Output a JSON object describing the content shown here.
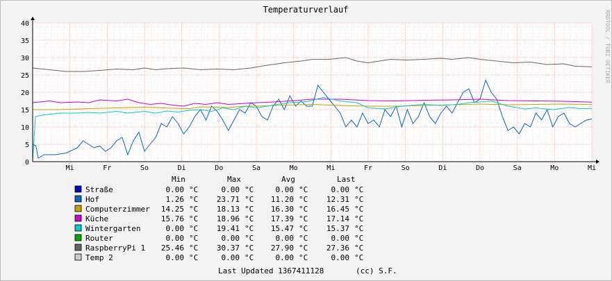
{
  "chart_data": {
    "type": "line",
    "title": "Temperaturverlauf",
    "watermark": "RRDTOOL / TOBI OETIKER",
    "ylim": [
      0,
      40
    ],
    "y_ticks": [
      "0",
      "5",
      "10",
      "15",
      "20",
      "25",
      "30",
      "35",
      "40"
    ],
    "x_ticks": [
      "Mi",
      "Fr",
      "So",
      "Di",
      "Do",
      "Sa",
      "Mo",
      "Mi",
      "Fr",
      "So",
      "Di",
      "Do",
      "Sa",
      "Mo",
      "Mi"
    ],
    "grid": true,
    "legend_headers": [
      "Min",
      "Max",
      "Avg",
      "Last"
    ],
    "unit": "°C",
    "series": [
      {
        "name": "Straße",
        "color": "#0000cc",
        "min": "0.00",
        "max": "0.00",
        "avg": "0.00",
        "last": "0.00",
        "values": []
      },
      {
        "name": "Hof",
        "color": "#0066cc",
        "min": "1.26",
        "max": "23.71",
        "avg": "11.20",
        "last": "12.31",
        "values": [
          [
            0,
            5
          ],
          [
            0.6,
            4.5
          ],
          [
            1,
            1
          ],
          [
            2,
            2
          ],
          [
            4,
            2
          ],
          [
            6,
            2.5
          ],
          [
            8,
            4
          ],
          [
            9,
            6
          ],
          [
            10,
            5
          ],
          [
            11,
            4
          ],
          [
            12,
            4.5
          ],
          [
            13,
            3
          ],
          [
            14,
            4
          ],
          [
            15,
            6
          ],
          [
            16,
            7
          ],
          [
            17,
            2
          ],
          [
            18,
            6
          ],
          [
            19,
            8.5
          ],
          [
            20,
            3
          ],
          [
            21,
            5
          ],
          [
            22,
            7
          ],
          [
            23,
            11
          ],
          [
            24,
            10
          ],
          [
            25,
            13
          ],
          [
            26,
            11
          ],
          [
            27,
            8
          ],
          [
            28,
            10
          ],
          [
            29,
            13
          ],
          [
            30,
            15
          ],
          [
            31,
            12
          ],
          [
            32,
            16
          ],
          [
            33,
            14.5
          ],
          [
            34,
            12
          ],
          [
            35,
            9
          ],
          [
            36,
            12
          ],
          [
            37,
            15
          ],
          [
            38,
            14
          ],
          [
            39,
            17
          ],
          [
            40,
            16
          ],
          [
            41,
            13
          ],
          [
            42,
            12
          ],
          [
            43,
            16
          ],
          [
            44,
            18
          ],
          [
            45,
            15
          ],
          [
            46,
            19
          ],
          [
            47,
            16
          ],
          [
            48,
            17.5
          ],
          [
            49,
            16
          ],
          [
            50,
            16
          ],
          [
            51,
            22
          ],
          [
            52,
            20
          ],
          [
            53,
            18
          ],
          [
            54,
            16
          ],
          [
            55,
            14
          ],
          [
            56,
            10
          ],
          [
            57,
            12
          ],
          [
            58,
            10
          ],
          [
            59,
            14
          ],
          [
            60,
            11
          ],
          [
            61,
            12
          ],
          [
            62,
            10
          ],
          [
            63,
            15
          ],
          [
            64,
            13
          ],
          [
            65,
            16
          ],
          [
            66,
            10
          ],
          [
            67,
            15
          ],
          [
            68,
            11
          ],
          [
            69,
            13
          ],
          [
            70,
            17
          ],
          [
            71,
            13
          ],
          [
            72,
            11
          ],
          [
            73,
            14
          ],
          [
            74,
            16
          ],
          [
            75,
            14
          ],
          [
            76,
            17
          ],
          [
            77,
            20
          ],
          [
            78,
            21
          ],
          [
            79,
            17
          ],
          [
            80,
            18
          ],
          [
            81,
            23.5
          ],
          [
            82,
            20
          ],
          [
            83,
            18
          ],
          [
            84,
            13
          ],
          [
            85,
            9
          ],
          [
            86,
            10
          ],
          [
            87,
            8
          ],
          [
            88,
            11
          ],
          [
            89,
            10
          ],
          [
            90,
            14
          ],
          [
            91,
            12
          ],
          [
            92,
            15
          ],
          [
            93,
            10
          ],
          [
            94,
            13
          ],
          [
            95,
            14
          ],
          [
            96,
            11
          ],
          [
            97,
            10
          ],
          [
            98,
            11
          ],
          [
            99,
            12
          ],
          [
            100,
            12.3
          ]
        ]
      },
      {
        "name": "Computerzimmer",
        "color": "#c2a300",
        "min": "14.25",
        "max": "18.13",
        "avg": "16.30",
        "last": "16.45",
        "values": [
          [
            0,
            15
          ],
          [
            5,
            15
          ],
          [
            10,
            15.3
          ],
          [
            15,
            15.5
          ],
          [
            20,
            15.7
          ],
          [
            25,
            15.4
          ],
          [
            28,
            15.3
          ],
          [
            30,
            15.8
          ],
          [
            35,
            15.6
          ],
          [
            38,
            16
          ],
          [
            40,
            16
          ],
          [
            45,
            16.3
          ],
          [
            50,
            16.5
          ],
          [
            55,
            16.2
          ],
          [
            60,
            16
          ],
          [
            65,
            16
          ],
          [
            70,
            16.2
          ],
          [
            75,
            16.4
          ],
          [
            80,
            16.6
          ],
          [
            85,
            16.4
          ],
          [
            90,
            16.5
          ],
          [
            95,
            16.6
          ],
          [
            100,
            16.45
          ]
        ]
      },
      {
        "name": "Küche",
        "color": "#cc00cc",
        "min": "15.76",
        "max": "18.96",
        "avg": "17.39",
        "last": "17.14",
        "values": [
          [
            0,
            17
          ],
          [
            3,
            17.5
          ],
          [
            5,
            17
          ],
          [
            8,
            17.2
          ],
          [
            10,
            17
          ],
          [
            12,
            17.8
          ],
          [
            15,
            17.5
          ],
          [
            17,
            18
          ],
          [
            19,
            17
          ],
          [
            21,
            16.5
          ],
          [
            23,
            16.8
          ],
          [
            25,
            16.3
          ],
          [
            27,
            16
          ],
          [
            29,
            16.8
          ],
          [
            31,
            16.5
          ],
          [
            33,
            17
          ],
          [
            35,
            16.5
          ],
          [
            38,
            16.8
          ],
          [
            40,
            17
          ],
          [
            43,
            17.2
          ],
          [
            46,
            17.5
          ],
          [
            50,
            18
          ],
          [
            55,
            18
          ],
          [
            60,
            17.6
          ],
          [
            65,
            17.5
          ],
          [
            70,
            17.7
          ],
          [
            75,
            17.8
          ],
          [
            80,
            18
          ],
          [
            85,
            17.6
          ],
          [
            90,
            17.5
          ],
          [
            95,
            17.4
          ],
          [
            100,
            17.14
          ]
        ]
      },
      {
        "name": "Wintergarten",
        "color": "#00cccc",
        "min": "0.00",
        "max": "19.41",
        "avg": "15.47",
        "last": "15.37",
        "values": [
          [
            0,
            0
          ],
          [
            0.5,
            13
          ],
          [
            2,
            13.5
          ],
          [
            5,
            14
          ],
          [
            8,
            14
          ],
          [
            10,
            14.2
          ],
          [
            12,
            14
          ],
          [
            15,
            14.5
          ],
          [
            17,
            14
          ],
          [
            20,
            14.5
          ],
          [
            22,
            14
          ],
          [
            24,
            14.6
          ],
          [
            26,
            14.3
          ],
          [
            28,
            14.8
          ],
          [
            30,
            15
          ],
          [
            32,
            14.5
          ],
          [
            34,
            15.5
          ],
          [
            36,
            15
          ],
          [
            38,
            16
          ],
          [
            40,
            15.5
          ],
          [
            43,
            16.3
          ],
          [
            46,
            17
          ],
          [
            49,
            17.3
          ],
          [
            52,
            18.5
          ],
          [
            55,
            17.5
          ],
          [
            58,
            17
          ],
          [
            60,
            15.5
          ],
          [
            63,
            15.2
          ],
          [
            66,
            16
          ],
          [
            70,
            16.5
          ],
          [
            73,
            16.2
          ],
          [
            76,
            16.5
          ],
          [
            78,
            17
          ],
          [
            80,
            17.2
          ],
          [
            82,
            17.5
          ],
          [
            85,
            16
          ],
          [
            88,
            15.2
          ],
          [
            90,
            15.5
          ],
          [
            93,
            15
          ],
          [
            96,
            15.6
          ],
          [
            98,
            15.3
          ],
          [
            100,
            15.37
          ]
        ]
      },
      {
        "name": "Router",
        "color": "#00aa00",
        "min": "0.00",
        "max": "0.00",
        "avg": "0.00",
        "last": "0.00",
        "values": []
      },
      {
        "name": "RaspberryPi 1",
        "color": "#666666",
        "min": "25.46",
        "max": "30.37",
        "avg": "27.90",
        "last": "27.36",
        "values": [
          [
            0,
            27
          ],
          [
            3,
            26.5
          ],
          [
            6,
            26
          ],
          [
            9,
            26
          ],
          [
            12,
            26.3
          ],
          [
            15,
            26.7
          ],
          [
            18,
            26.5
          ],
          [
            20,
            27
          ],
          [
            22,
            26.5
          ],
          [
            24,
            26.8
          ],
          [
            27,
            27
          ],
          [
            30,
            26.5
          ],
          [
            33,
            26.7
          ],
          [
            36,
            26.5
          ],
          [
            39,
            27
          ],
          [
            42,
            27.8
          ],
          [
            45,
            28.5
          ],
          [
            48,
            29
          ],
          [
            50,
            29.5
          ],
          [
            53,
            29.5
          ],
          [
            56,
            30
          ],
          [
            58,
            29
          ],
          [
            60,
            28.5
          ],
          [
            62,
            29
          ],
          [
            64,
            29.5
          ],
          [
            67,
            29.3
          ],
          [
            70,
            29.5
          ],
          [
            73,
            29.8
          ],
          [
            75,
            29.5
          ],
          [
            78,
            30
          ],
          [
            80,
            29.5
          ],
          [
            83,
            29
          ],
          [
            86,
            28.5
          ],
          [
            89,
            28.7
          ],
          [
            92,
            28
          ],
          [
            95,
            28.2
          ],
          [
            97,
            27.5
          ],
          [
            100,
            27.36
          ]
        ]
      },
      {
        "name": "Temp 2",
        "color": "#cccccc",
        "min": "0.00",
        "max": "0.00",
        "avg": "0.00",
        "last": "0.00",
        "values": []
      }
    ]
  },
  "footer": {
    "updated": "Last Updated 1367411128",
    "credit": "(cc) S.F."
  }
}
